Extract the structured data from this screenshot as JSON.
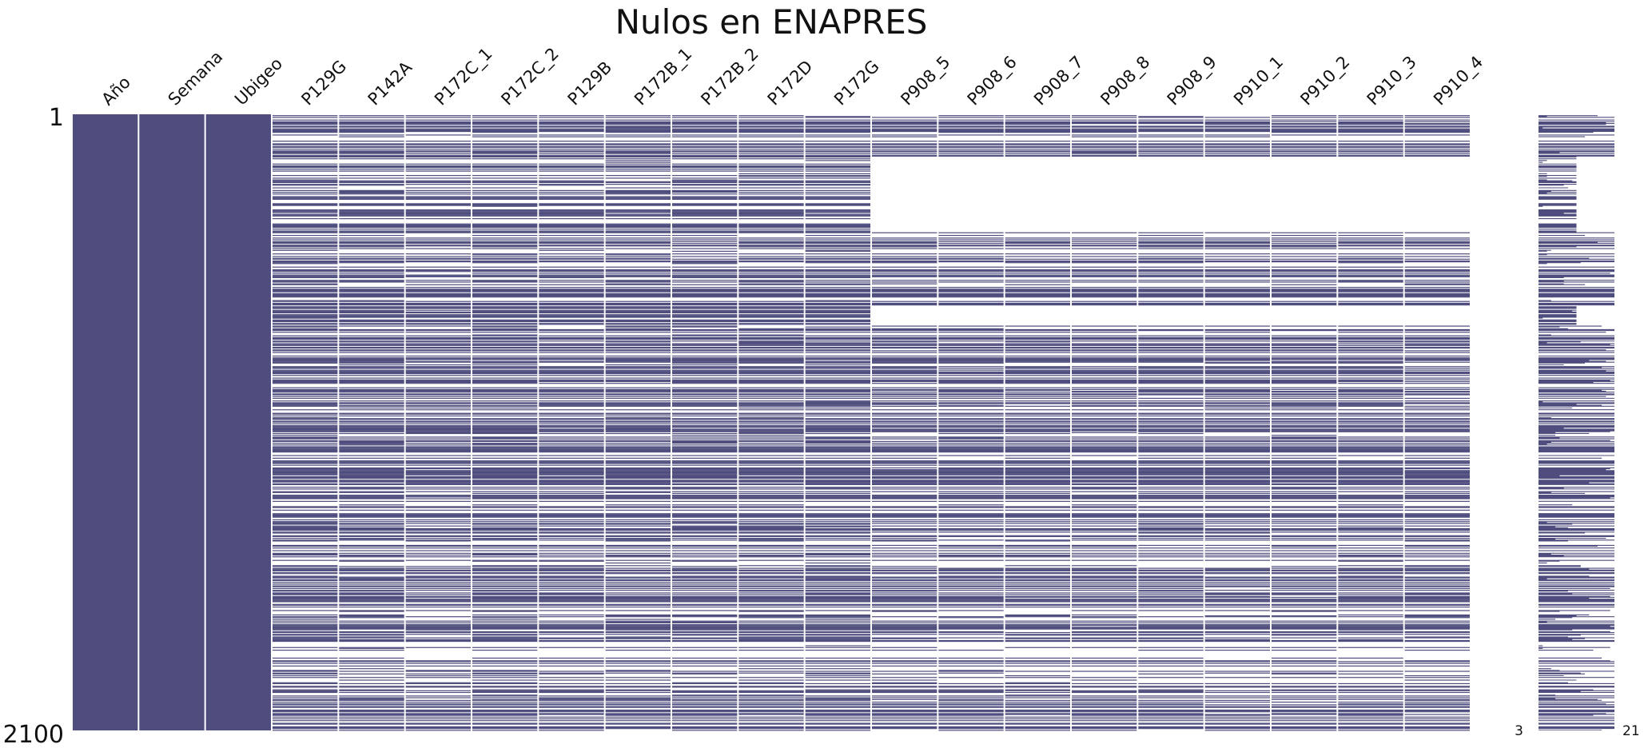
{
  "chart_data": {
    "type": "heatmap",
    "title": "Nulos en ENAPRES",
    "columns": [
      "Año",
      "Semana",
      "Ubigeo",
      "P129G",
      "P142A",
      "P172C_1",
      "P172C_2",
      "P129B",
      "P172B_1",
      "P172B_2",
      "P172D",
      "P172G",
      "P908_5",
      "P908_6",
      "P908_7",
      "P908_8",
      "P908_9",
      "P910_1",
      "P910_2",
      "P910_3",
      "P910_4"
    ],
    "row_range": [
      1,
      2100
    ],
    "row_labels": {
      "first": "1",
      "last": "2100"
    },
    "sparkline_range": [
      3,
      21
    ],
    "sparkline_labels": {
      "min": "3",
      "max": "21"
    },
    "colors": {
      "present": "#4e4d7d",
      "missing": "#ffffff",
      "background": "#ffffff"
    },
    "complete_columns": [
      "Año",
      "Semana",
      "Ubigeo"
    ],
    "block_missing_rows": {
      "columns": [
        "P908_5",
        "P908_6",
        "P908_7",
        "P908_8",
        "P908_9",
        "P910_1",
        "P910_2",
        "P910_3",
        "P910_4"
      ],
      "ranges": [
        [
          145,
          400
        ],
        [
          655,
          715
        ]
      ]
    },
    "approx_row_completeness": {
      "Año": 1.0,
      "Semana": 1.0,
      "Ubigeo": 1.0,
      "P129G": 0.55,
      "P142A": 0.55,
      "P172C_1": 0.5,
      "P172C_2": 0.55,
      "P129B": 0.53,
      "P172B_1": 0.55,
      "P172B_2": 0.55,
      "P172D": 0.55,
      "P172G": 0.55,
      "P908_5": 0.5,
      "P908_6": 0.5,
      "P908_7": 0.5,
      "P908_8": 0.5,
      "P908_9": 0.5,
      "P910_1": 0.5,
      "P910_2": 0.5,
      "P910_3": 0.5,
      "P910_4": 0.5
    }
  }
}
